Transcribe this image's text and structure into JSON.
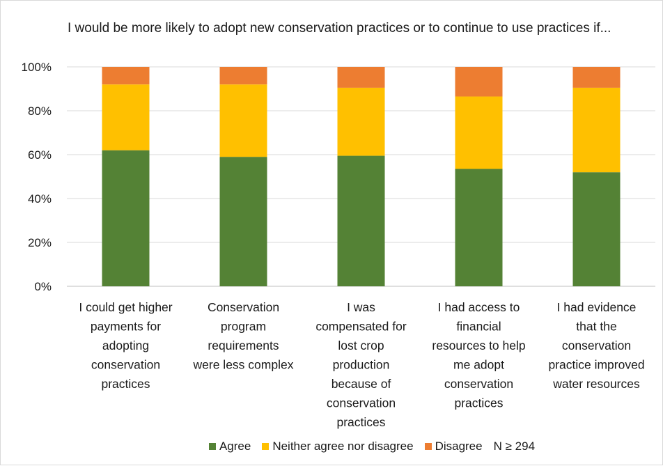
{
  "chart_data": {
    "type": "bar",
    "stacked": true,
    "title": "I would be more likely to adopt new conservation practices or to continue to use practices if...",
    "categories": [
      [
        "I could get higher",
        "payments for",
        "adopting",
        "conservation",
        "practices"
      ],
      [
        "Conservation",
        "program",
        "requirements",
        "were less complex"
      ],
      [
        "I was",
        "compensated for",
        "lost crop",
        "production",
        "because of",
        "conservation",
        "practices"
      ],
      [
        "I had access to",
        "financial",
        "resources to help",
        "me adopt",
        "conservation",
        "practices"
      ],
      [
        "I had evidence",
        "that the",
        "conservation",
        "practice improved",
        "water resources"
      ]
    ],
    "series": [
      {
        "name": "Agree",
        "color": "#548235",
        "values": [
          62,
          59,
          59.5,
          53.5,
          52
        ]
      },
      {
        "name": "Neither agree nor disagree",
        "color": "#ffc000",
        "values": [
          30,
          33,
          31,
          33,
          38.5
        ]
      },
      {
        "name": "Disagree",
        "color": "#ed7d31",
        "values": [
          8,
          8,
          9.5,
          13.5,
          9.5
        ]
      }
    ],
    "ylim": [
      0,
      100
    ],
    "yticks": [
      "0%",
      "20%",
      "40%",
      "60%",
      "80%",
      "100%"
    ],
    "grid": true,
    "legend_position": "bottom",
    "legend_note": "N ≥ 294"
  }
}
